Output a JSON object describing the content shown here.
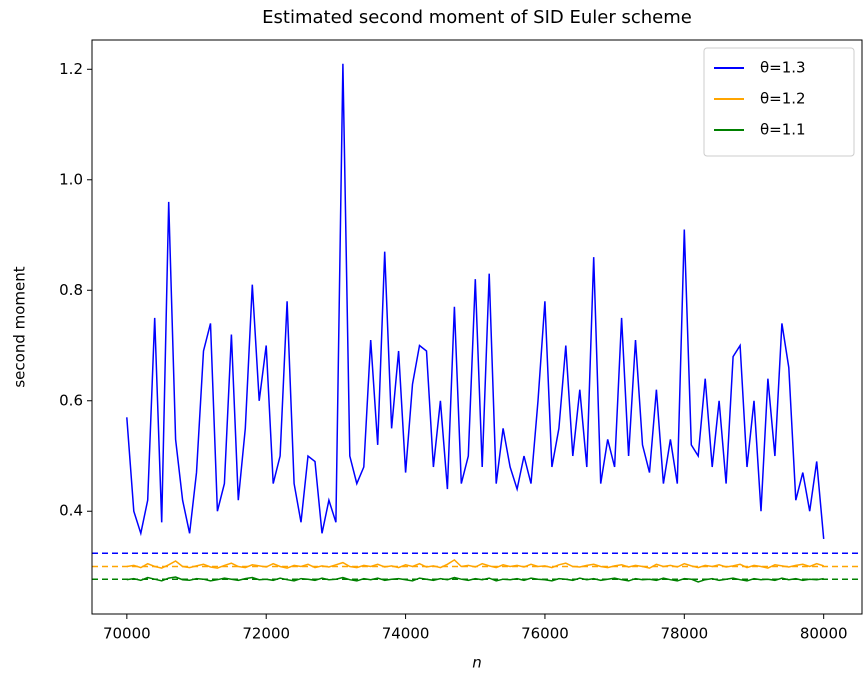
{
  "chart_data": {
    "type": "line",
    "title": "Estimated second moment of SID Euler scheme",
    "xlabel": "n",
    "ylabel": "second moment",
    "x": [
      70000,
      70100,
      70200,
      70300,
      70400,
      70500,
      70600,
      70700,
      70800,
      70900,
      71000,
      71100,
      71200,
      71300,
      71400,
      71500,
      71600,
      71700,
      71800,
      71900,
      72000,
      72100,
      72200,
      72300,
      72400,
      72500,
      72600,
      72700,
      72800,
      72900,
      73000,
      73100,
      73200,
      73300,
      73400,
      73500,
      73600,
      73700,
      73800,
      73900,
      74000,
      74100,
      74200,
      74300,
      74400,
      74500,
      74600,
      74700,
      74800,
      74900,
      75000,
      75100,
      75200,
      75300,
      75400,
      75500,
      75600,
      75700,
      75800,
      75900,
      76000,
      76100,
      76200,
      76300,
      76400,
      76500,
      76600,
      76700,
      76800,
      76900,
      77000,
      77100,
      77200,
      77300,
      77400,
      77500,
      77600,
      77700,
      77800,
      77900,
      78000,
      78100,
      78200,
      78300,
      78400,
      78500,
      78600,
      78700,
      78800,
      78900,
      79000,
      79100,
      79200,
      79300,
      79400,
      79500,
      79600,
      79700,
      79800,
      79900,
      80000
    ],
    "series": [
      {
        "name": "θ=1.3",
        "color": "#0000ff",
        "values": [
          0.57,
          0.4,
          0.36,
          0.42,
          0.75,
          0.38,
          0.96,
          0.53,
          0.42,
          0.36,
          0.47,
          0.69,
          0.74,
          0.4,
          0.45,
          0.72,
          0.42,
          0.55,
          0.81,
          0.6,
          0.7,
          0.45,
          0.5,
          0.78,
          0.45,
          0.38,
          0.5,
          0.49,
          0.36,
          0.42,
          0.38,
          1.21,
          0.5,
          0.45,
          0.48,
          0.71,
          0.52,
          0.87,
          0.55,
          0.69,
          0.47,
          0.63,
          0.7,
          0.69,
          0.48,
          0.6,
          0.44,
          0.77,
          0.45,
          0.5,
          0.82,
          0.48,
          0.83,
          0.45,
          0.55,
          0.48,
          0.44,
          0.5,
          0.45,
          0.6,
          0.78,
          0.48,
          0.55,
          0.7,
          0.5,
          0.62,
          0.48,
          0.86,
          0.45,
          0.53,
          0.48,
          0.75,
          0.5,
          0.71,
          0.52,
          0.47,
          0.62,
          0.45,
          0.53,
          0.45,
          0.91,
          0.52,
          0.5,
          0.64,
          0.48,
          0.6,
          0.45,
          0.68,
          0.7,
          0.48,
          0.6,
          0.4,
          0.64,
          0.5,
          0.74,
          0.66,
          0.42,
          0.47,
          0.4,
          0.49,
          0.35
        ]
      },
      {
        "name": "θ=1.2",
        "color": "#ffa500",
        "values": [
          0.3,
          0.302,
          0.298,
          0.305,
          0.3,
          0.297,
          0.303,
          0.31,
          0.3,
          0.298,
          0.301,
          0.304,
          0.299,
          0.297,
          0.302,
          0.306,
          0.3,
          0.298,
          0.303,
          0.301,
          0.299,
          0.305,
          0.3,
          0.297,
          0.302,
          0.3,
          0.304,
          0.298,
          0.301,
          0.299,
          0.303,
          0.307,
          0.3,
          0.298,
          0.302,
          0.3,
          0.304,
          0.299,
          0.301,
          0.298,
          0.303,
          0.3,
          0.305,
          0.299,
          0.301,
          0.298,
          0.304,
          0.312,
          0.3,
          0.302,
          0.299,
          0.305,
          0.301,
          0.298,
          0.303,
          0.3,
          0.302,
          0.299,
          0.304,
          0.3,
          0.301,
          0.298,
          0.303,
          0.306,
          0.3,
          0.299,
          0.302,
          0.304,
          0.3,
          0.298,
          0.301,
          0.303,
          0.299,
          0.302,
          0.3,
          0.297,
          0.304,
          0.3,
          0.302,
          0.299,
          0.305,
          0.301,
          0.298,
          0.302,
          0.3,
          0.303,
          0.299,
          0.301,
          0.304,
          0.298,
          0.302,
          0.3,
          0.297,
          0.303,
          0.301,
          0.299,
          0.302,
          0.304,
          0.3,
          0.305,
          0.301
        ]
      },
      {
        "name": "θ=1.1",
        "color": "#008000",
        "values": [
          0.276,
          0.278,
          0.275,
          0.28,
          0.277,
          0.274,
          0.279,
          0.281,
          0.276,
          0.275,
          0.278,
          0.277,
          0.274,
          0.276,
          0.279,
          0.277,
          0.275,
          0.278,
          0.28,
          0.276,
          0.277,
          0.275,
          0.279,
          0.276,
          0.274,
          0.278,
          0.277,
          0.275,
          0.279,
          0.276,
          0.277,
          0.28,
          0.276,
          0.274,
          0.278,
          0.276,
          0.279,
          0.275,
          0.277,
          0.278,
          0.276,
          0.274,
          0.279,
          0.277,
          0.275,
          0.278,
          0.276,
          0.28,
          0.277,
          0.275,
          0.278,
          0.276,
          0.279,
          0.274,
          0.277,
          0.276,
          0.278,
          0.275,
          0.279,
          0.277,
          0.276,
          0.274,
          0.278,
          0.277,
          0.275,
          0.279,
          0.276,
          0.278,
          0.275,
          0.277,
          0.279,
          0.276,
          0.274,
          0.278,
          0.276,
          0.277,
          0.275,
          0.279,
          0.276,
          0.274,
          0.278,
          0.277,
          0.272,
          0.276,
          0.278,
          0.275,
          0.277,
          0.279,
          0.276,
          0.274,
          0.278,
          0.276,
          0.277,
          0.275,
          0.279,
          0.276,
          0.278,
          0.275,
          0.277,
          0.276,
          0.278
        ]
      }
    ],
    "reference_lines": [
      {
        "value": 0.324,
        "color": "#0000ff"
      },
      {
        "value": 0.3,
        "color": "#ffa500"
      },
      {
        "value": 0.277,
        "color": "#008000"
      }
    ],
    "xlim": [
      69500,
      80550
    ],
    "xticks": [
      70000,
      72000,
      74000,
      76000,
      78000,
      80000
    ],
    "ylim": [
      0.214,
      1.253
    ],
    "yticks": [
      0.4,
      0.6,
      0.8,
      {
        "value": 1,
        "label": "1.0"
      },
      1.2
    ],
    "legend": "upper right"
  }
}
